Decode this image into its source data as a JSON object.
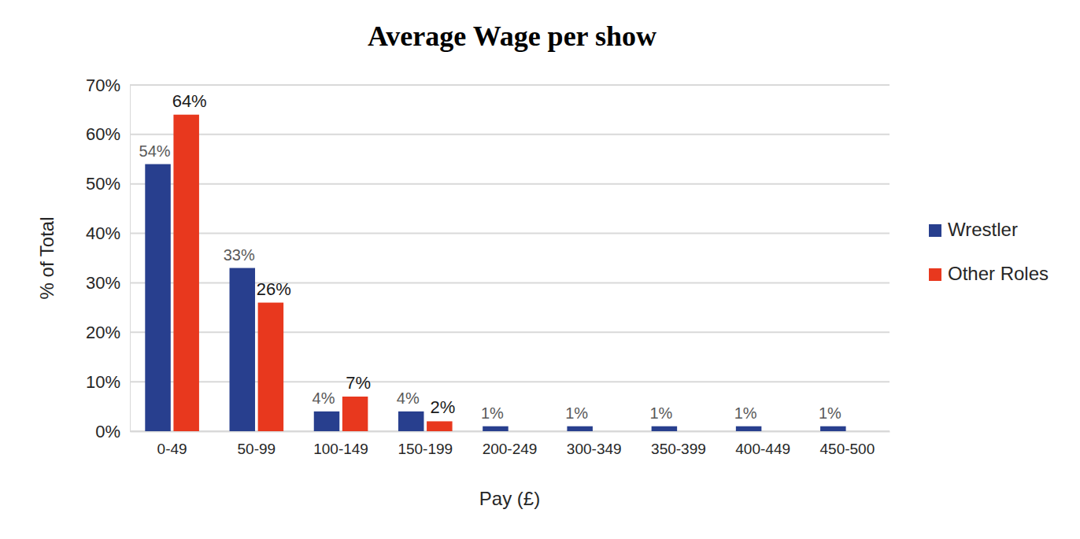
{
  "chart_data": {
    "type": "bar",
    "title": "Average Wage per show",
    "x_label": "Pay (£)",
    "y_label": "% of Total",
    "categories": [
      "0-49",
      "50-99",
      "100-149",
      "150-199",
      "200-249",
      "300-349",
      "350-399",
      "400-449",
      "450-500"
    ],
    "series": [
      {
        "name": "Wrestler",
        "color": "#283f8e",
        "values": [
          54,
          33,
          4,
          4,
          1,
          1,
          1,
          1,
          1
        ],
        "value_labels": [
          "54%",
          "33%",
          "4%",
          "4%",
          "1%",
          "1%",
          "1%",
          "1%",
          "1%"
        ]
      },
      {
        "name": "Other Roles",
        "color": "#e8381e",
        "values": [
          64,
          26,
          7,
          2,
          null,
          null,
          null,
          null,
          null
        ],
        "value_labels": [
          "64%",
          "26%",
          "7%",
          "2%",
          null,
          null,
          null,
          null,
          null
        ]
      }
    ],
    "ylim": [
      0,
      70
    ],
    "yticks": [
      {
        "value": 0,
        "label": "0%"
      },
      {
        "value": 10,
        "label": "10%"
      },
      {
        "value": 20,
        "label": "20%"
      },
      {
        "value": 30,
        "label": "30%"
      },
      {
        "value": 40,
        "label": "40%"
      },
      {
        "value": 50,
        "label": "50%"
      },
      {
        "value": 60,
        "label": "60%"
      },
      {
        "value": 70,
        "label": "70%"
      }
    ],
    "grid": true,
    "legend": "right",
    "data_labels": true
  }
}
